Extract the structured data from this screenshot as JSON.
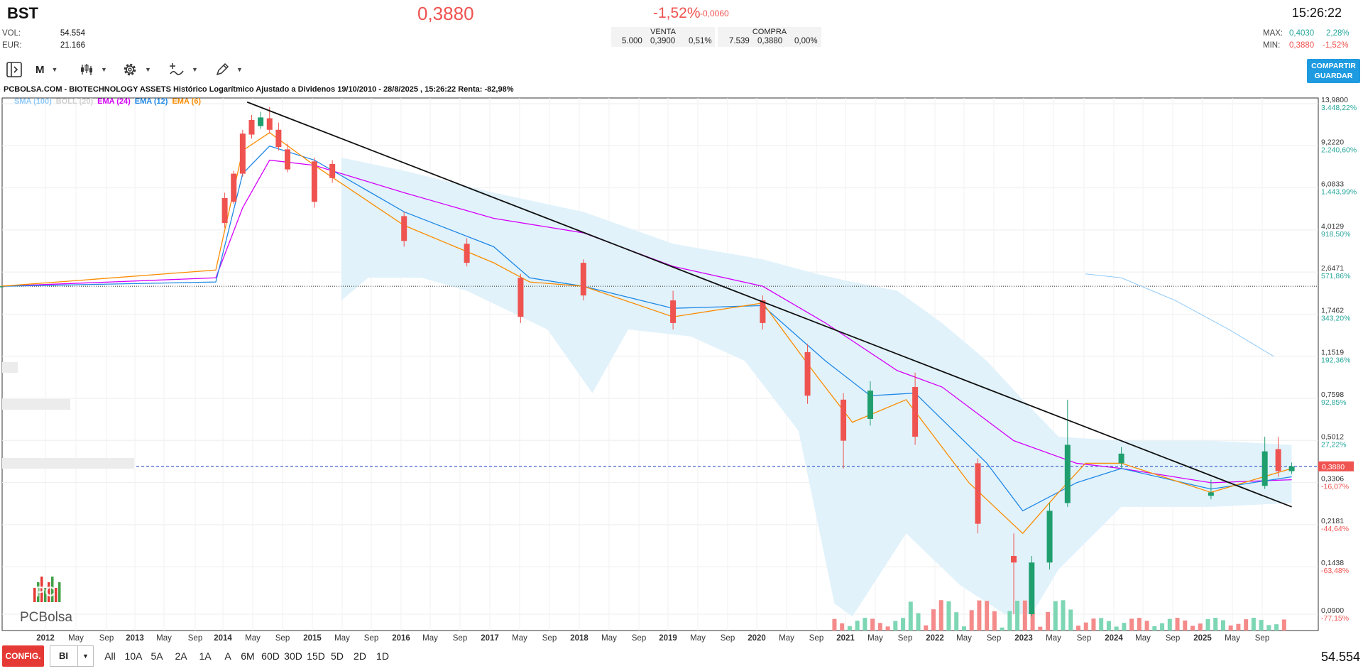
{
  "header": {
    "ticker": "BST",
    "price": "0,3880",
    "change_pct": "-1,52%",
    "change_abs": "-0,0060",
    "vol_label": "VOL:",
    "vol_value": "54.554",
    "eur_label": "EUR:",
    "eur_value": "21.166",
    "venta": {
      "label": "VENTA",
      "qty": "5.000",
      "price": "0,3900",
      "pct": "0,51%"
    },
    "compra": {
      "label": "COMPRA",
      "qty": "7.539",
      "price": "0,3880",
      "pct": "0,00%"
    },
    "time": "15:26:22",
    "max_label": "MAX:",
    "max_value": "0,4030",
    "max_pct": "2,28%",
    "min_label": "MIN:",
    "min_value": "0,3880",
    "min_pct": "-1,52%"
  },
  "toolbar": {
    "period_label": "M",
    "share_label_1": "COMPARTIR",
    "share_label_2": "GUARDAR",
    "icons": [
      "panel-toggle-icon",
      "candles-icon",
      "gear-icon",
      "indicator-icon",
      "drawing-pencil-icon"
    ]
  },
  "chart_title": "PCBOLSA.COM - BIOTECHNOLOGY ASSETS Histórico Logarítmico Ajustado a Dividenos 19/10/2010 - 28/8/2025 , 15:26:22 Renta: -82,98%",
  "legend": [
    {
      "label": "SMA (100)",
      "color": "#90caf9"
    },
    {
      "label": "BOLL (20)",
      "color": "#d0d0d0"
    },
    {
      "label": "EMA (24)",
      "color": "#d500f9"
    },
    {
      "label": "EMA (12)",
      "color": "#1e88e5"
    },
    {
      "label": "EMA (6)",
      "color": "#fb8c00"
    }
  ],
  "logo": {
    "mark": "PC",
    "text": "PCBolsa"
  },
  "chart_data": {
    "type": "candlestick",
    "scale": "log",
    "y_ticks": [
      {
        "price": "13,9800",
        "pct": "3.448,22%",
        "value": 13.98
      },
      {
        "price": "9,2220",
        "pct": "2.240,60%",
        "value": 9.222
      },
      {
        "price": "6,0833",
        "pct": "1.443,99%",
        "value": 6.0833
      },
      {
        "price": "4,0129",
        "pct": "918,50%",
        "value": 4.0129
      },
      {
        "price": "2,6471",
        "pct": "571,86%",
        "value": 2.6471
      },
      {
        "price": "1,7462",
        "pct": "343,20%",
        "value": 1.7462
      },
      {
        "price": "1,1519",
        "pct": "192,36%",
        "value": 1.1519
      },
      {
        "price": "0,7598",
        "pct": "92,85%",
        "value": 0.7598
      },
      {
        "price": "0,5012",
        "pct": "27,22%",
        "value": 0.5012
      },
      {
        "price": "0,3306",
        "pct": "-16,07%",
        "value": 0.3306
      },
      {
        "price": "0,2181",
        "pct": "-44,64%",
        "value": 0.2181
      },
      {
        "price": "0,1438",
        "pct": "-63,48%",
        "value": 0.1438
      },
      {
        "price": "0,0900",
        "pct": "-77,15%",
        "value": 0.09
      }
    ],
    "x_ticks": [
      "2012",
      "May",
      "Sep",
      "2013",
      "May",
      "Sep",
      "2014",
      "May",
      "Sep",
      "2015",
      "May",
      "Sep",
      "2016",
      "May",
      "Sep",
      "2017",
      "May",
      "Sep",
      "2018",
      "May",
      "Sep",
      "2019",
      "May",
      "Sep",
      "2020",
      "May",
      "Sep",
      "2021",
      "May",
      "Sep",
      "2022",
      "May",
      "Sep",
      "2023",
      "May",
      "Sep",
      "2024",
      "May",
      "Sep",
      "2025",
      "May",
      "Sep"
    ],
    "current_price": {
      "label": "0,3880",
      "value": 0.388
    },
    "reference_line": 2.3,
    "trendline": [
      [
        2014.25,
        14.2
      ],
      [
        2025.9,
        0.26
      ]
    ],
    "candles_key": [
      [
        2011.5,
        2.3,
        2.3,
        2.3,
        2.3
      ],
      [
        2014.0,
        5.5,
        4.3,
        5.8,
        4.1
      ],
      [
        2014.1,
        7.0,
        5.3,
        7.2,
        5.2
      ],
      [
        2014.2,
        10.4,
        7.0,
        10.8,
        6.8
      ],
      [
        2014.3,
        11.9,
        10.3,
        12.5,
        9.9
      ],
      [
        2014.4,
        11.2,
        12.2,
        12.9,
        10.9
      ],
      [
        2014.5,
        12.1,
        10.8,
        13.5,
        10.4
      ],
      [
        2014.6,
        10.8,
        9.1,
        11.6,
        8.8
      ],
      [
        2014.7,
        8.9,
        7.3,
        9.4,
        7.1
      ],
      [
        2015.0,
        7.9,
        5.3,
        8.2,
        5.0
      ],
      [
        2015.2,
        7.7,
        6.7,
        8.0,
        6.4
      ],
      [
        2016.0,
        4.6,
        3.6,
        4.8,
        3.4
      ],
      [
        2016.7,
        3.5,
        2.9,
        3.7,
        2.8
      ],
      [
        2017.3,
        2.5,
        1.7,
        2.6,
        1.6
      ],
      [
        2018.0,
        2.9,
        2.1,
        3.0,
        2.0
      ],
      [
        2019.0,
        2.0,
        1.6,
        2.2,
        1.5
      ],
      [
        2020.0,
        2.0,
        1.6,
        2.1,
        1.5
      ],
      [
        2020.5,
        1.2,
        0.78,
        1.3,
        0.72
      ],
      [
        2020.9,
        0.75,
        0.5,
        0.8,
        0.38
      ],
      [
        2021.2,
        0.62,
        0.82,
        0.9,
        0.58
      ],
      [
        2021.7,
        0.85,
        0.52,
        0.98,
        0.48
      ],
      [
        2022.4,
        0.4,
        0.22,
        0.42,
        0.2
      ],
      [
        2022.8,
        0.16,
        0.15,
        0.2,
        0.09
      ],
      [
        2023.0,
        0.09,
        0.15,
        0.16,
        0.088
      ],
      [
        2023.2,
        0.15,
        0.25,
        0.27,
        0.14
      ],
      [
        2023.4,
        0.27,
        0.48,
        0.75,
        0.26
      ],
      [
        2024.0,
        0.4,
        0.44,
        0.47,
        0.38
      ],
      [
        2025.0,
        0.29,
        0.3,
        0.34,
        0.28
      ],
      [
        2025.6,
        0.32,
        0.45,
        0.52,
        0.31
      ],
      [
        2025.75,
        0.46,
        0.37,
        0.52,
        0.35
      ],
      [
        2025.9,
        0.37,
        0.388,
        0.403,
        0.36
      ]
    ]
  },
  "bottom": {
    "config_label": "CONFIG.",
    "select_value": "BI",
    "ranges": [
      "All",
      "10A",
      "5A",
      "2A",
      "1A",
      "A",
      "6M",
      "60D",
      "30D",
      "15D",
      "5D",
      "2D",
      "1D"
    ],
    "volume": "54.554"
  }
}
